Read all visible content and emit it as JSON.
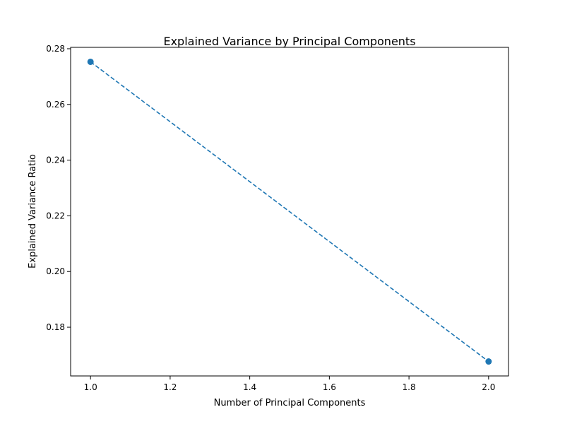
{
  "chart_data": {
    "type": "line",
    "title": "Explained Variance by Principal Components",
    "xlabel": "Number of Principal Components",
    "ylabel": "Explained Variance Ratio",
    "xlim": [
      0.95,
      2.05
    ],
    "ylim": [
      0.1625,
      0.2805
    ],
    "xticks": [
      "1.0",
      "1.2",
      "1.4",
      "1.6",
      "1.8",
      "2.0"
    ],
    "yticks": [
      "0.18",
      "0.20",
      "0.22",
      "0.24",
      "0.26",
      "0.28"
    ],
    "grid": false,
    "series": [
      {
        "x": [
          1,
          2
        ],
        "y": [
          0.2753,
          0.1677
        ],
        "color": "#1f77b4",
        "linestyle": "dashed",
        "marker": "circle"
      }
    ]
  }
}
